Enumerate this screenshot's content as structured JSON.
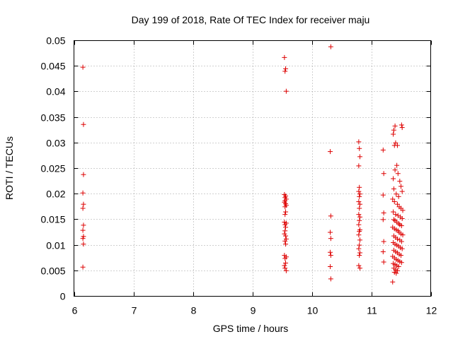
{
  "chart_data": {
    "type": "scatter",
    "title": "Day 199 of 2018, Rate Of TEC Index for receiver maju",
    "xlabel": "GPS time / hours",
    "ylabel": "ROTI / TECUs",
    "xlim": [
      6,
      12
    ],
    "ylim": [
      0,
      0.05
    ],
    "x_ticks": [
      6,
      7,
      8,
      9,
      10,
      11,
      12
    ],
    "x_tick_labels": [
      "6",
      "7",
      "8",
      "9",
      "10",
      "11",
      "12"
    ],
    "y_ticks": [
      0,
      0.005,
      0.01,
      0.015,
      0.02,
      0.025,
      0.03,
      0.035,
      0.04,
      0.045,
      0.05
    ],
    "y_tick_labels": [
      "0",
      "0.005",
      "0.01",
      "0.015",
      "0.02",
      "0.025",
      "0.03",
      "0.035",
      "0.04",
      "0.045",
      "0.05"
    ],
    "grid": true,
    "marker": "+",
    "color": "#dd0000",
    "series": [
      {
        "name": "ROTI",
        "points": [
          [
            6.15,
            0.0448
          ],
          [
            6.16,
            0.0336
          ],
          [
            6.16,
            0.0238
          ],
          [
            6.15,
            0.0202
          ],
          [
            6.16,
            0.018
          ],
          [
            6.15,
            0.0172
          ],
          [
            6.16,
            0.0139
          ],
          [
            6.15,
            0.0129
          ],
          [
            6.16,
            0.0117
          ],
          [
            6.15,
            0.0113
          ],
          [
            6.16,
            0.0102
          ],
          [
            6.15,
            0.0057
          ],
          [
            9.54,
            0.0467
          ],
          [
            9.56,
            0.0445
          ],
          [
            9.55,
            0.044
          ],
          [
            9.57,
            0.0401
          ],
          [
            9.54,
            0.0199
          ],
          [
            9.56,
            0.0196
          ],
          [
            9.55,
            0.0193
          ],
          [
            9.57,
            0.019
          ],
          [
            9.55,
            0.0187
          ],
          [
            9.54,
            0.0184
          ],
          [
            9.56,
            0.0181
          ],
          [
            9.57,
            0.0178
          ],
          [
            9.55,
            0.0175
          ],
          [
            9.56,
            0.0165
          ],
          [
            9.55,
            0.016
          ],
          [
            9.54,
            0.0145
          ],
          [
            9.57,
            0.0143
          ],
          [
            9.55,
            0.014
          ],
          [
            9.56,
            0.0135
          ],
          [
            9.55,
            0.0128
          ],
          [
            9.54,
            0.0122
          ],
          [
            9.56,
            0.0118
          ],
          [
            9.57,
            0.0112
          ],
          [
            9.55,
            0.0108
          ],
          [
            9.56,
            0.0102
          ],
          [
            9.54,
            0.008
          ],
          [
            9.57,
            0.0077
          ],
          [
            9.55,
            0.0074
          ],
          [
            9.56,
            0.0065
          ],
          [
            9.54,
            0.006
          ],
          [
            9.55,
            0.0055
          ],
          [
            9.57,
            0.005
          ],
          [
            10.32,
            0.0488
          ],
          [
            10.31,
            0.0283
          ],
          [
            10.32,
            0.0157
          ],
          [
            10.31,
            0.0125
          ],
          [
            10.32,
            0.0113
          ],
          [
            10.31,
            0.0086
          ],
          [
            10.32,
            0.008
          ],
          [
            10.31,
            0.0058
          ],
          [
            10.32,
            0.0034
          ],
          [
            10.79,
            0.0302
          ],
          [
            10.8,
            0.0289
          ],
          [
            10.81,
            0.0273
          ],
          [
            10.79,
            0.0255
          ],
          [
            10.8,
            0.0213
          ],
          [
            10.79,
            0.0205
          ],
          [
            10.81,
            0.02
          ],
          [
            10.8,
            0.0195
          ],
          [
            10.79,
            0.0185
          ],
          [
            10.81,
            0.018
          ],
          [
            10.8,
            0.0172
          ],
          [
            10.79,
            0.016
          ],
          [
            10.81,
            0.0155
          ],
          [
            10.8,
            0.0148
          ],
          [
            10.79,
            0.014
          ],
          [
            10.81,
            0.013
          ],
          [
            10.8,
            0.0127
          ],
          [
            10.79,
            0.012
          ],
          [
            10.81,
            0.011
          ],
          [
            10.8,
            0.01
          ],
          [
            10.79,
            0.0093
          ],
          [
            10.81,
            0.0085
          ],
          [
            10.8,
            0.008
          ],
          [
            10.79,
            0.006
          ],
          [
            10.81,
            0.0055
          ],
          [
            11.2,
            0.0286
          ],
          [
            11.21,
            0.024
          ],
          [
            11.2,
            0.0198
          ],
          [
            11.21,
            0.0163
          ],
          [
            11.2,
            0.015
          ],
          [
            11.21,
            0.0107
          ],
          [
            11.2,
            0.0087
          ],
          [
            11.21,
            0.0067
          ],
          [
            11.38,
            0.0325
          ],
          [
            11.4,
            0.0333
          ],
          [
            11.37,
            0.0317
          ],
          [
            11.41,
            0.03
          ],
          [
            11.39,
            0.0295
          ],
          [
            11.51,
            0.0335
          ],
          [
            11.52,
            0.033
          ],
          [
            11.44,
            0.0295
          ],
          [
            11.37,
            0.023
          ],
          [
            11.4,
            0.0247
          ],
          [
            11.43,
            0.0256
          ],
          [
            11.45,
            0.024
          ],
          [
            11.48,
            0.0225
          ],
          [
            11.5,
            0.0215
          ],
          [
            11.52,
            0.0205
          ],
          [
            11.38,
            0.021
          ],
          [
            11.42,
            0.02
          ],
          [
            11.46,
            0.0195
          ],
          [
            11.36,
            0.019
          ],
          [
            11.39,
            0.0185
          ],
          [
            11.44,
            0.018
          ],
          [
            11.47,
            0.0175
          ],
          [
            11.5,
            0.0172
          ],
          [
            11.53,
            0.0168
          ],
          [
            11.37,
            0.0165
          ],
          [
            11.41,
            0.016
          ],
          [
            11.45,
            0.0158
          ],
          [
            11.49,
            0.0155
          ],
          [
            11.52,
            0.0152
          ],
          [
            11.38,
            0.015
          ],
          [
            11.4,
            0.0148
          ],
          [
            11.43,
            0.0145
          ],
          [
            11.46,
            0.0142
          ],
          [
            11.48,
            0.014
          ],
          [
            11.51,
            0.0138
          ],
          [
            11.36,
            0.0135
          ],
          [
            11.39,
            0.0132
          ],
          [
            11.42,
            0.013
          ],
          [
            11.45,
            0.0128
          ],
          [
            11.47,
            0.0125
          ],
          [
            11.5,
            0.0122
          ],
          [
            11.53,
            0.012
          ],
          [
            11.38,
            0.0118
          ],
          [
            11.41,
            0.0115
          ],
          [
            11.44,
            0.0112
          ],
          [
            11.48,
            0.011
          ],
          [
            11.51,
            0.0107
          ],
          [
            11.37,
            0.0105
          ],
          [
            11.4,
            0.0102
          ],
          [
            11.43,
            0.01
          ],
          [
            11.46,
            0.0098
          ],
          [
            11.49,
            0.0095
          ],
          [
            11.52,
            0.0093
          ],
          [
            11.38,
            0.009
          ],
          [
            11.41,
            0.0087
          ],
          [
            11.44,
            0.0085
          ],
          [
            11.47,
            0.0082
          ],
          [
            11.5,
            0.008
          ],
          [
            11.36,
            0.0078
          ],
          [
            11.39,
            0.0075
          ],
          [
            11.42,
            0.0072
          ],
          [
            11.45,
            0.007
          ],
          [
            11.48,
            0.0068
          ],
          [
            11.51,
            0.0066
          ],
          [
            11.37,
            0.0064
          ],
          [
            11.4,
            0.0062
          ],
          [
            11.43,
            0.006
          ],
          [
            11.46,
            0.0058
          ],
          [
            11.38,
            0.0055
          ],
          [
            11.41,
            0.0052
          ],
          [
            11.44,
            0.005
          ],
          [
            11.39,
            0.0047
          ],
          [
            11.42,
            0.0045
          ],
          [
            11.36,
            0.0028
          ]
        ]
      }
    ]
  }
}
